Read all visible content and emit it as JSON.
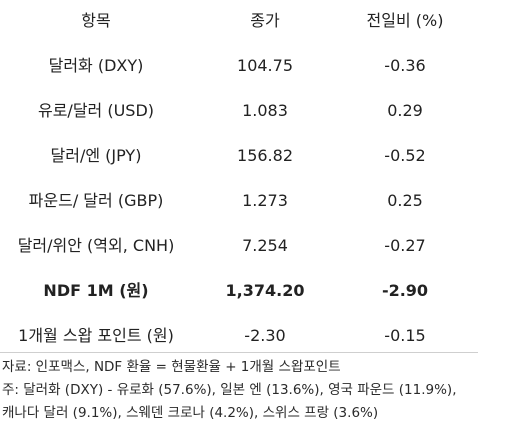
{
  "table": {
    "headers": [
      "항목",
      "종가",
      "전일비 (%)"
    ],
    "rows": [
      {
        "item": "달러화 (DXY)",
        "close": "104.75",
        "change": "-0.36",
        "bold": false
      },
      {
        "item": "유로/달러 (USD)",
        "close": "1.083",
        "change": "0.29",
        "bold": false
      },
      {
        "item": "달러/엔 (JPY)",
        "close": "156.82",
        "change": "-0.52",
        "bold": false
      },
      {
        "item": "파운드/ 달러 (GBP)",
        "close": "1.273",
        "change": "0.25",
        "bold": false
      },
      {
        "item": "달러/위안 (역외, CNH)",
        "close": "7.254",
        "change": "-0.27",
        "bold": false
      },
      {
        "item": "NDF 1M (원)",
        "close": "1,374.20",
        "change": "-2.90",
        "bold": true
      },
      {
        "item": "1개월 스왑 포인트 (원)",
        "close": "-2.30",
        "change": "-0.15",
        "bold": false
      }
    ]
  },
  "notes": {
    "source": "자료: 인포맥스, NDF 환율 = 현물환율 + 1개월 스왑포인트",
    "note_line1": "주: 달러화 (DXY) - 유로화 (57.6%), 일본 엔 (13.6%), 영국 파운드 (11.9%),",
    "note_line2": "캐나다 달러 (9.1%), 스웨덴 크로나 (4.2%), 스위스 프랑 (3.6%)"
  }
}
